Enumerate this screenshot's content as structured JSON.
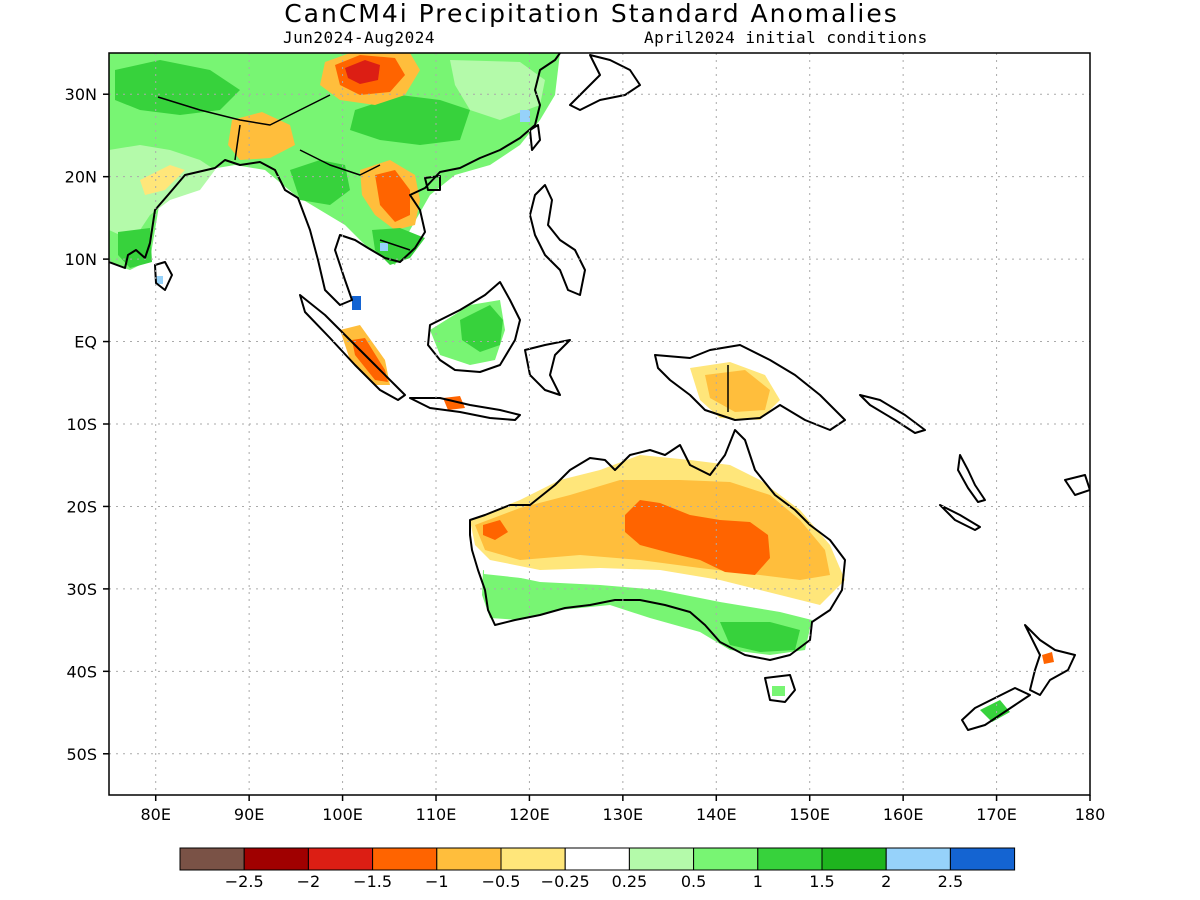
{
  "header": {
    "title": "CanCM4i Precipitation Standard Anomalies",
    "period": "Jun2024-Aug2024",
    "init": "April2024 initial conditions"
  },
  "axes": {
    "lat_ticks": [
      "30N",
      "20N",
      "10N",
      "EQ",
      "10S",
      "20S",
      "30S",
      "40S",
      "50S"
    ],
    "lat_values": [
      30,
      20,
      10,
      0,
      -10,
      -20,
      -30,
      -40,
      -50
    ],
    "lon_ticks": [
      "80E",
      "90E",
      "100E",
      "110E",
      "120E",
      "130E",
      "140E",
      "150E",
      "160E",
      "170E",
      "180"
    ],
    "lon_values": [
      80,
      90,
      100,
      110,
      120,
      130,
      140,
      150,
      160,
      170,
      180
    ],
    "lon_range": [
      75,
      180
    ],
    "lat_range": [
      -55,
      35
    ]
  },
  "legend": {
    "colors": [
      "#7a5246",
      "#a00000",
      "#dc1e14",
      "#ff6400",
      "#ffbe3c",
      "#ffe67a",
      "#ffffff",
      "#b4faaa",
      "#78f573",
      "#37d23c",
      "#1eb41e",
      "#96d2fa",
      "#1464d2"
    ],
    "labels": [
      "-2.5",
      "-2",
      "-1.5",
      "-1",
      "-0.5",
      "-0.25",
      "0.25",
      "0.5",
      "1",
      "1.5",
      "2",
      "2.5"
    ]
  },
  "map_colors": {
    "strong_dry": "#ff6400",
    "dry": "#ffbe3c",
    "weak_dry": "#ffe67a",
    "red": "#dc1e14",
    "weak_wet": "#b4faaa",
    "wet": "#78f573",
    "strong_wet": "#37d23c",
    "very_wet": "#1eb41e",
    "blue": "#96d2fa",
    "deep_blue": "#1464d2"
  }
}
